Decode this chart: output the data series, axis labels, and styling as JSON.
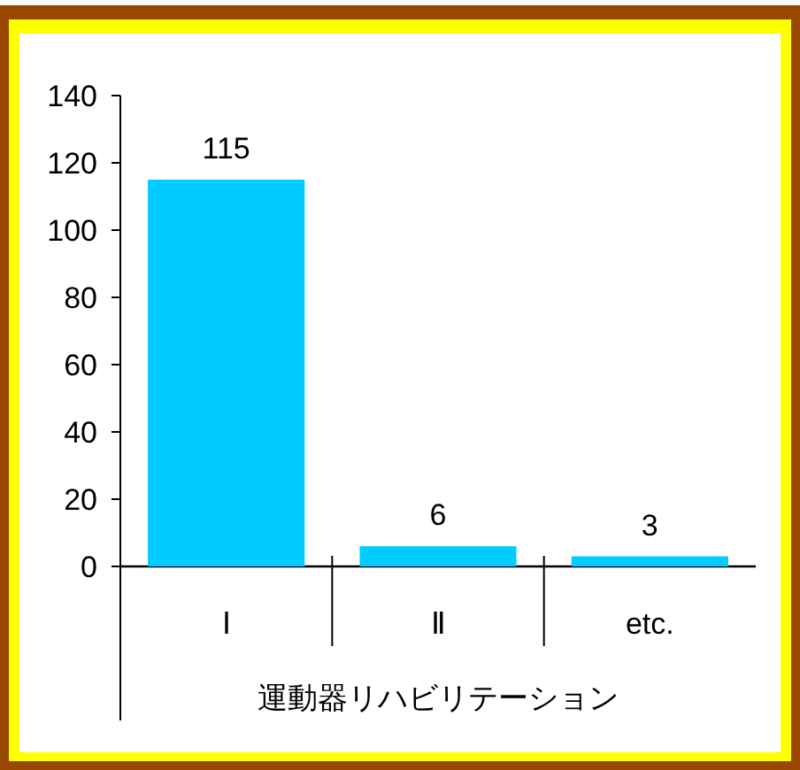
{
  "chart_data": {
    "type": "bar",
    "xlabel": "運動器リハビリテーション",
    "categories": [
      "Ⅰ",
      "Ⅱ",
      "etc."
    ],
    "values": [
      115,
      6,
      3
    ],
    "color": "#00ccff",
    "ylim": [
      0,
      140
    ],
    "yticks": [
      0,
      20,
      40,
      60,
      80,
      100,
      120,
      140
    ],
    "data_labels": true
  }
}
